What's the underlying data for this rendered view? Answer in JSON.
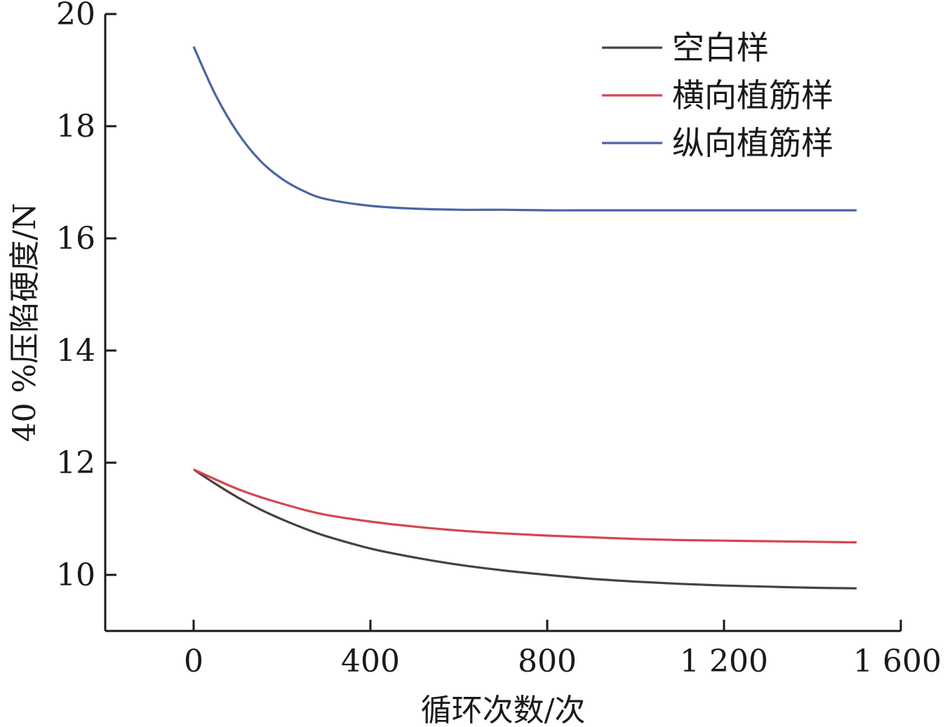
{
  "chart_data": {
    "type": "line",
    "title": "",
    "xlabel": "循环次数/次",
    "ylabel": "40 %压陷硬度/N",
    "xlim": [
      -200,
      1600
    ],
    "ylim": [
      9,
      20
    ],
    "x_ticks": [
      0,
      400,
      800,
      1200,
      1600
    ],
    "x_tick_labels": [
      "0",
      "400",
      "800",
      "1 200",
      "1 600"
    ],
    "y_ticks": [
      10,
      12,
      14,
      16,
      18,
      20
    ],
    "y_tick_labels": [
      "10",
      "12",
      "14",
      "16",
      "18",
      "20"
    ],
    "grid": false,
    "legend_position": "top-right",
    "x": [
      0,
      50,
      100,
      150,
      200,
      250,
      300,
      400,
      500,
      600,
      700,
      800,
      900,
      1000,
      1100,
      1200,
      1300,
      1400,
      1500
    ],
    "series": [
      {
        "name": "空白样",
        "color": "#4a4040",
        "values": [
          11.88,
          11.62,
          11.38,
          11.17,
          10.99,
          10.83,
          10.69,
          10.47,
          10.31,
          10.18,
          10.08,
          10.0,
          9.93,
          9.88,
          9.84,
          9.81,
          9.79,
          9.77,
          9.76
        ]
      },
      {
        "name": "横向植筋样",
        "color": "#d64550",
        "values": [
          11.88,
          11.7,
          11.53,
          11.39,
          11.27,
          11.16,
          11.07,
          10.95,
          10.86,
          10.79,
          10.74,
          10.7,
          10.67,
          10.64,
          10.62,
          10.61,
          10.6,
          10.59,
          10.58
        ]
      },
      {
        "name": "纵向植筋样",
        "color": "#4a64a4",
        "values": [
          19.42,
          18.55,
          17.88,
          17.39,
          17.06,
          16.84,
          16.7,
          16.58,
          16.53,
          16.51,
          16.51,
          16.5,
          16.5,
          16.5,
          16.5,
          16.5,
          16.5,
          16.5,
          16.5
        ]
      }
    ]
  }
}
